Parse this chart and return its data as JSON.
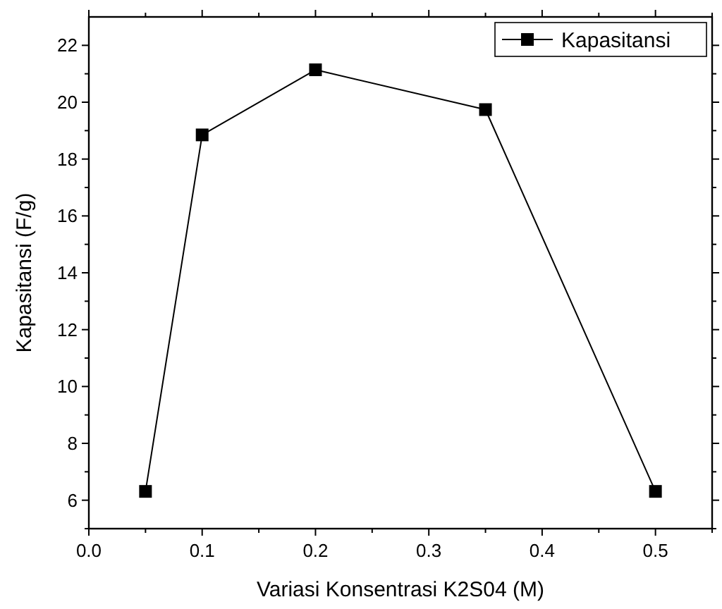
{
  "chart_data": {
    "type": "line",
    "xlabel": "Variasi Konsentrasi K2S04 (M)",
    "ylabel": "Kapasitansi (F/g)",
    "x": [
      0.05,
      0.1,
      0.2,
      0.35,
      0.5
    ],
    "series": [
      {
        "name": "Kapasitansi",
        "color": "#000000",
        "values": [
          6.31,
          18.85,
          21.14,
          19.74,
          6.31
        ]
      }
    ],
    "xlim": [
      0,
      0.55
    ],
    "xticks": [
      {
        "value": 0,
        "label": "0.0"
      },
      0.1,
      0.2,
      0.3,
      0.4,
      0.5
    ],
    "ylim": [
      5,
      23
    ],
    "yticks": [
      6,
      8,
      10,
      12,
      14,
      16,
      18,
      20,
      22
    ],
    "marker": "square",
    "line_style": "solid",
    "legend": "top right",
    "grid": false
  }
}
